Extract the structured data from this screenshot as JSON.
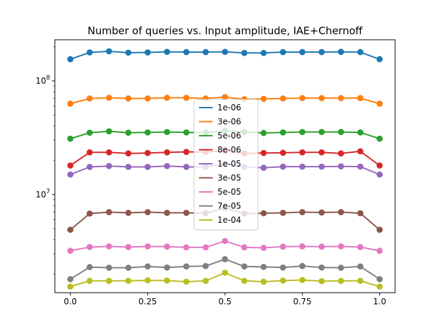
{
  "chart_data": {
    "type": "line",
    "title": "Number of queries vs. Input amplitude, IAE+Chernoff",
    "xlabel": "",
    "ylabel": "",
    "yscale": "log",
    "grid": false,
    "legend_placement": "center",
    "xlim": [
      -0.05,
      1.05
    ],
    "ylim": [
      1370000.0,
      230000000.0
    ],
    "x_ticks": [
      0.0,
      0.25,
      0.5,
      0.75,
      1.0
    ],
    "x_tick_labels": [
      "0.0",
      "0.25",
      "0.5",
      "0.75",
      "1.0"
    ],
    "y_ticks": [
      10000000,
      100000000
    ],
    "y_tick_labels": [
      "10^7",
      "10^8"
    ],
    "x": [
      0.0,
      0.0625,
      0.125,
      0.1875,
      0.25,
      0.3125,
      0.375,
      0.4375,
      0.5,
      0.5625,
      0.625,
      0.6875,
      0.75,
      0.8125,
      0.875,
      0.9375,
      1.0
    ],
    "series": [
      {
        "name": "1e-06",
        "color": "#1f77b4",
        "values": [
          155000000.0,
          178000000.0,
          182000000.0,
          177000000.0,
          178000000.0,
          180000000.0,
          179000000.0,
          179000000.0,
          180000000.0,
          176000000.0,
          176000000.0,
          179000000.0,
          179000000.0,
          179000000.0,
          180000000.0,
          179000000.0,
          155000000.0
        ]
      },
      {
        "name": "3e-06",
        "color": "#ff7f0e",
        "values": [
          63000000.0,
          70000000.0,
          71000000.0,
          70000000.0,
          70000000.0,
          71000000.0,
          71000000.0,
          70000000.0,
          72000000.0,
          69000000.0,
          69500000.0,
          70000000.0,
          70500000.0,
          70500000.0,
          70500000.0,
          70500000.0,
          63000000.0
        ]
      },
      {
        "name": "5e-06",
        "color": "#2ca02c",
        "values": [
          31000000.0,
          35000000.0,
          36000000.0,
          35000000.0,
          35200000.0,
          35500000.0,
          35200000.0,
          35200000.0,
          36500000.0,
          35500000.0,
          34800000.0,
          35200000.0,
          35500000.0,
          35500000.0,
          35500000.0,
          35200000.0,
          31000000.0
        ]
      },
      {
        "name": "8e-06",
        "color": "#d62728",
        "values": [
          18000000.0,
          23500000.0,
          23500000.0,
          23000000.0,
          23200000.0,
          23500000.0,
          23700000.0,
          23700000.0,
          24200000.0,
          23000000.0,
          23200000.0,
          23300000.0,
          23500000.0,
          23500000.0,
          23000000.0,
          24000000.0,
          18000000.0
        ]
      },
      {
        "name": "1e-05",
        "color": "#9467bd",
        "values": [
          15000000.0,
          17500000.0,
          17800000.0,
          17500000.0,
          17500000.0,
          17800000.0,
          17500000.0,
          17500000.0,
          18500000.0,
          17500000.0,
          17200000.0,
          17600000.0,
          17600000.0,
          17600000.0,
          17700000.0,
          17600000.0,
          15000000.0
        ]
      },
      {
        "name": "3e-05",
        "color": "#8c564b",
        "values": [
          4900000.0,
          6800000.0,
          7000000.0,
          6900000.0,
          7000000.0,
          6900000.0,
          6900000.0,
          6850000.0,
          7600000.0,
          6800000.0,
          6850000.0,
          6900000.0,
          7000000.0,
          6950000.0,
          7000000.0,
          6850000.0,
          4900000.0
        ]
      },
      {
        "name": "5e-05",
        "color": "#e377c2",
        "values": [
          3200000.0,
          3450000.0,
          3500000.0,
          3450000.0,
          3500000.0,
          3480000.0,
          3430000.0,
          3430000.0,
          3900000.0,
          3430000.0,
          3400000.0,
          3480000.0,
          3500000.0,
          3480000.0,
          3500000.0,
          3450000.0,
          3200000.0
        ]
      },
      {
        "name": "7e-05",
        "color": "#7f7f7f",
        "values": [
          1800000.0,
          2300000.0,
          2270000.0,
          2270000.0,
          2330000.0,
          2280000.0,
          2330000.0,
          2350000.0,
          2700000.0,
          2330000.0,
          2310000.0,
          2280000.0,
          2350000.0,
          2280000.0,
          2270000.0,
          2330000.0,
          1800000.0
        ]
      },
      {
        "name": "1e-04",
        "color": "#bcbd22",
        "values": [
          1550000.0,
          1740000.0,
          1740000.0,
          1740000.0,
          1760000.0,
          1750000.0,
          1710000.0,
          1740000.0,
          2050000.0,
          1740000.0,
          1710000.0,
          1750000.0,
          1770000.0,
          1730000.0,
          1740000.0,
          1740000.0,
          1550000.0
        ]
      }
    ]
  }
}
